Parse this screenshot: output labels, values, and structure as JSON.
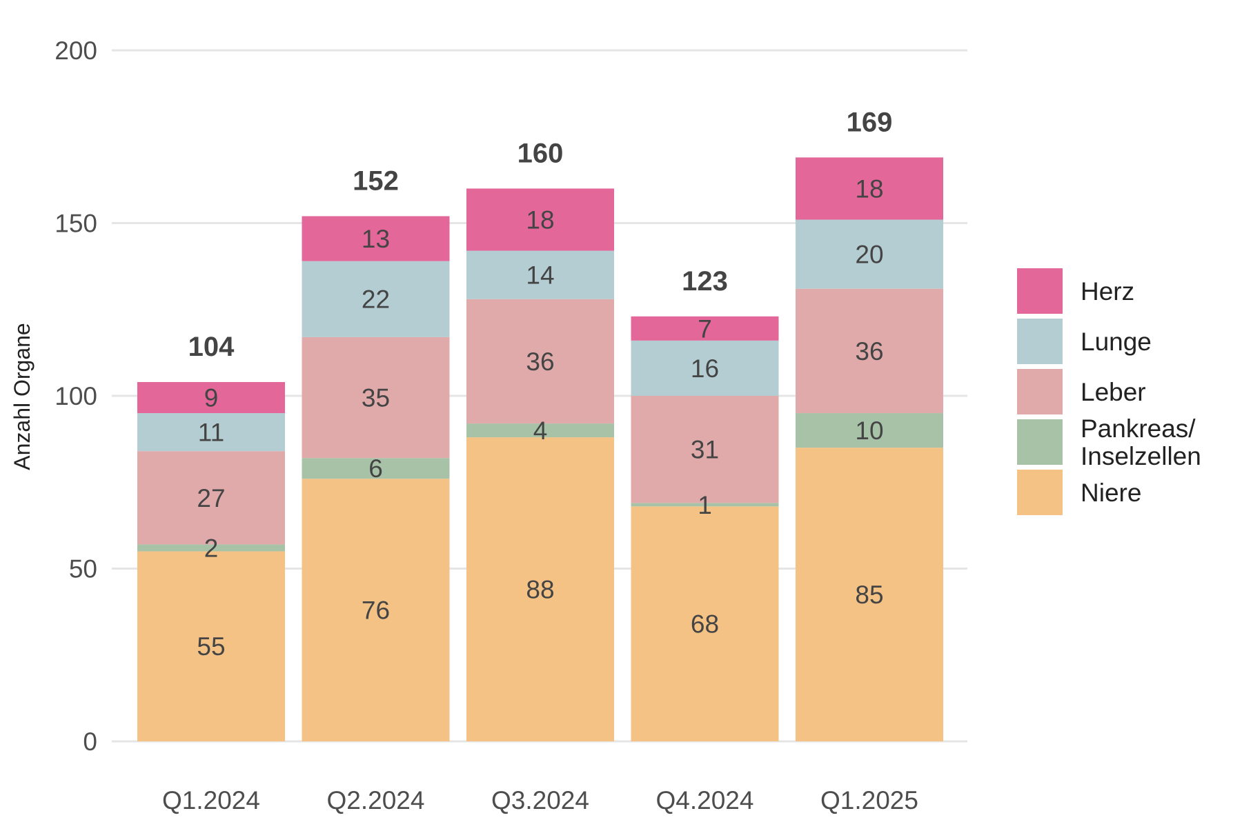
{
  "chart_data": {
    "type": "bar",
    "stacked": true,
    "categories": [
      "Q1.2024",
      "Q2.2024",
      "Q3.2024",
      "Q4.2024",
      "Q1.2025"
    ],
    "series": [
      {
        "name": "Niere",
        "values": [
          55,
          76,
          88,
          68,
          85
        ],
        "color": "#F4C285"
      },
      {
        "name": "Pankreas/\nInselzellen",
        "values": [
          2,
          6,
          4,
          1,
          10
        ],
        "color": "#A8C2A8"
      },
      {
        "name": "Leber",
        "values": [
          27,
          35,
          36,
          31,
          36
        ],
        "color": "#E0AAAA"
      },
      {
        "name": "Lunge",
        "values": [
          11,
          22,
          14,
          16,
          20
        ],
        "color": "#B4CDD2"
      },
      {
        "name": "Herz",
        "values": [
          9,
          13,
          18,
          7,
          18
        ],
        "color": "#E4679A"
      }
    ],
    "totals": [
      104,
      152,
      160,
      123,
      169
    ],
    "ylabel": "Anzahl Organe",
    "xlabel": "",
    "ylim": [
      0,
      200
    ],
    "yticks": [
      0,
      50,
      100,
      150,
      200
    ],
    "grid": "horizontal",
    "legend_position": "right",
    "legend_order": [
      "Herz",
      "Lunge",
      "Leber",
      "Pankreas/\nInselzellen",
      "Niere"
    ]
  }
}
